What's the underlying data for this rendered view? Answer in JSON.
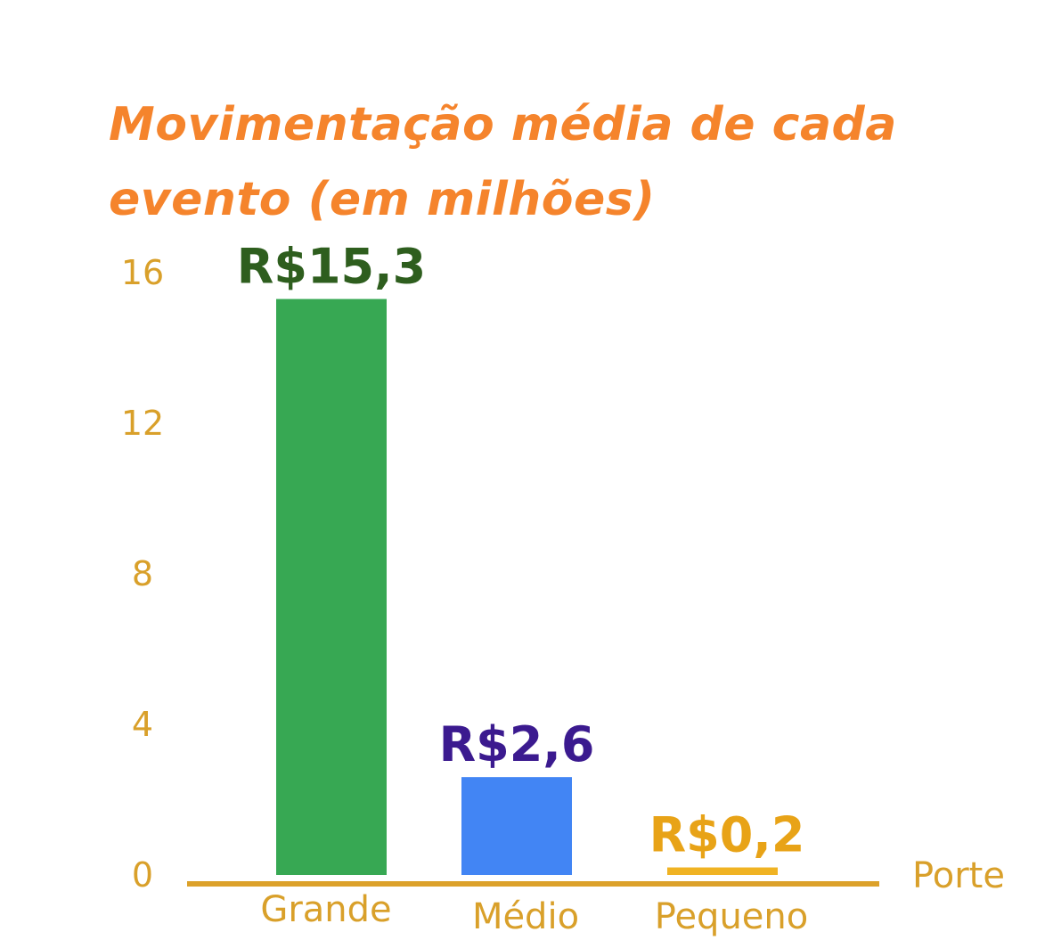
{
  "chart_data": {
    "type": "bar",
    "title": "Movimentação média de cada evento (em milhões)",
    "categories": [
      "Grande",
      "Médio",
      "Pequeno"
    ],
    "values": [
      15.3,
      2.6,
      0.2
    ],
    "data_labels": [
      "R$15,3",
      "R$2,6",
      "R$0,2"
    ],
    "bar_colors": [
      "#37a853",
      "#4285f4",
      "#f0b323"
    ],
    "label_colors": [
      "#2e5e1e",
      "#3b1a8f",
      "#e8a317"
    ],
    "xlabel": "Porte",
    "ylabel": "",
    "yticks": [
      0,
      4,
      8,
      12,
      16
    ],
    "ylim": [
      0,
      16
    ],
    "grid": false,
    "legend": "none",
    "axis_color": "#dca12a"
  }
}
